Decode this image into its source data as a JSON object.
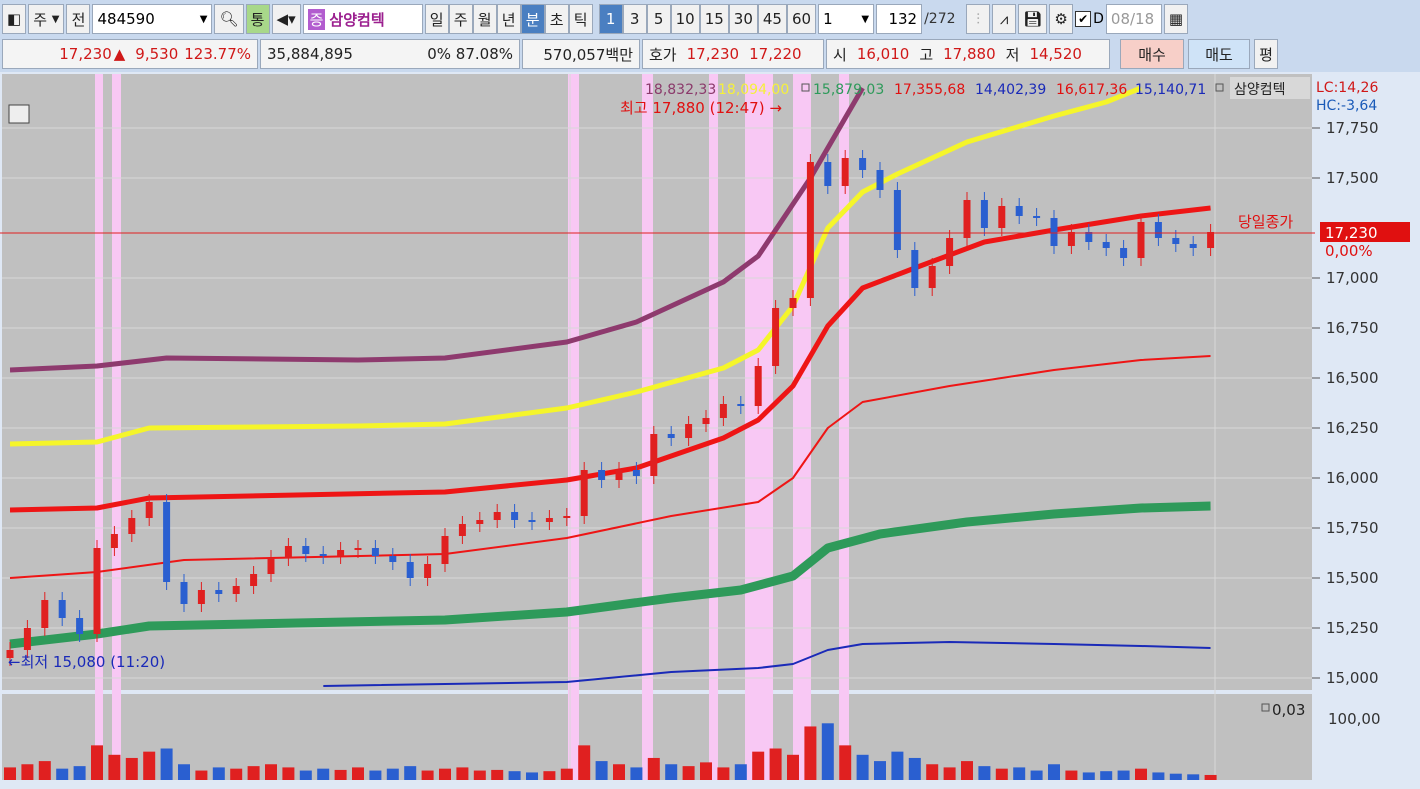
{
  "toolbar": {
    "market": "주",
    "prev": "전",
    "code": "484590",
    "type_btn": "통",
    "name_badge": "증",
    "stock_name": "삼양컴텍",
    "periods": [
      "일",
      "주",
      "월",
      "년",
      "분",
      "초",
      "틱"
    ],
    "selected_period": "분",
    "minutes": [
      "1",
      "3",
      "5",
      "10",
      "15",
      "30",
      "45",
      "60"
    ],
    "selected_minute": "1",
    "multiplier": "1",
    "count": "132",
    "total": "/272",
    "d_checkbox_label": "D",
    "d_checked": true,
    "date": "08/18"
  },
  "quote": {
    "price": "17,230",
    "arrow": "▲",
    "change": "9,530",
    "change_pct": "123.77%",
    "volume": "35,884,895",
    "pct1": "0%",
    "pct2": "87.08%",
    "amount": "570,057백만",
    "bid_label": "호가",
    "ask": "17,230",
    "bid": "17,220",
    "open_label": "시",
    "open": "16,010",
    "high_label": "고",
    "high": "17,880",
    "low_label": "저",
    "low": "14,520",
    "buy_label": "매수",
    "sell_label": "매도",
    "avg_label": "평"
  },
  "legend": {
    "values": [
      {
        "text": "18,832,33",
        "color": "#8b3a6b"
      },
      {
        "text": "18,094,00",
        "color": "#f5f03a"
      },
      {
        "text": "15,879,03",
        "color": "#2e9a5a"
      },
      {
        "text": "17,355,68",
        "color": "#e01010"
      },
      {
        "text": "14,402,39",
        "color": "#1a2ab8"
      },
      {
        "text": "16,617,36",
        "color": "#e01010"
      },
      {
        "text": "15,140,71",
        "color": "#1a2ab8"
      }
    ],
    "name": "삼양컴텍",
    "lc": "LC:14,26",
    "hc": "HC:-3,64"
  },
  "annotations": {
    "high": "최고 17,880 (12:47) →",
    "low": "←최저 15,080 (11:20)",
    "close_label": "당일종가",
    "price_box": "17,230",
    "price_pct": "0,00%",
    "volume_value": "0,03",
    "volume_axis": "100,00"
  },
  "chart_data": {
    "type": "candlestick",
    "y_ticks": [
      "17,750",
      "17,500",
      "17,000",
      "16,750",
      "16,500",
      "16,250",
      "16,000",
      "15,750",
      "15,500",
      "15,250",
      "15,000"
    ],
    "ylim": [
      14980,
      17900
    ],
    "colors": {
      "up": "#e02020",
      "down": "#2a5fd0"
    },
    "closes": [
      15140,
      15250,
      15390,
      15300,
      15220,
      15650,
      15720,
      15800,
      15880,
      15480,
      15370,
      15440,
      15420,
      15460,
      15520,
      15600,
      15660,
      15620,
      15610,
      15640,
      15650,
      15610,
      15580,
      15500,
      15570,
      15710,
      15770,
      15790,
      15830,
      15790,
      15780,
      15800,
      15810,
      16040,
      15990,
      16040,
      16010,
      16220,
      16200,
      16270,
      16300,
      16370,
      16360,
      16560,
      16850,
      16900,
      17580,
      17460,
      17600,
      17540,
      17440,
      17140,
      16950,
      17060,
      17200,
      17390,
      17250,
      17360,
      17310,
      17300,
      17160,
      17230,
      17180,
      17150,
      17100,
      17280,
      17200,
      17170,
      17150,
      17230
    ],
    "volumes": [
      20,
      25,
      30,
      18,
      22,
      55,
      40,
      35,
      45,
      50,
      25,
      15,
      20,
      18,
      22,
      25,
      20,
      15,
      18,
      16,
      20,
      15,
      18,
      22,
      15,
      18,
      20,
      15,
      16,
      14,
      12,
      14,
      18,
      55,
      30,
      25,
      20,
      35,
      25,
      22,
      28,
      20,
      25,
      45,
      50,
      40,
      85,
      90,
      55,
      40,
      30,
      45,
      35,
      25,
      20,
      30,
      22,
      18,
      20,
      15,
      25,
      15,
      12,
      14,
      15,
      18,
      12,
      10,
      9,
      8
    ],
    "lines": [
      {
        "color": "#8e3a6e",
        "width": 5,
        "points": [
          [
            0,
            16540
          ],
          [
            5,
            16560
          ],
          [
            9,
            16600
          ],
          [
            20,
            16590
          ],
          [
            25,
            16600
          ],
          [
            32,
            16680
          ],
          [
            36,
            16780
          ],
          [
            41,
            16980
          ],
          [
            43,
            17110
          ],
          [
            46,
            17500
          ],
          [
            49,
            17950
          ]
        ]
      },
      {
        "color": "#f5f52a",
        "width": 5,
        "points": [
          [
            0,
            16170
          ],
          [
            5,
            16180
          ],
          [
            8,
            16250
          ],
          [
            20,
            16260
          ],
          [
            25,
            16270
          ],
          [
            32,
            16350
          ],
          [
            36,
            16430
          ],
          [
            41,
            16550
          ],
          [
            43,
            16640
          ],
          [
            45,
            16860
          ],
          [
            47,
            17250
          ],
          [
            49,
            17430
          ],
          [
            51,
            17520
          ],
          [
            55,
            17680
          ],
          [
            60,
            17810
          ],
          [
            63,
            17880
          ],
          [
            65,
            17950
          ]
        ]
      },
      {
        "color": "#ee1515",
        "width": 5,
        "points": [
          [
            0,
            15840
          ],
          [
            5,
            15850
          ],
          [
            8,
            15900
          ],
          [
            25,
            15930
          ],
          [
            32,
            15990
          ],
          [
            36,
            16050
          ],
          [
            41,
            16200
          ],
          [
            43,
            16290
          ],
          [
            45,
            16460
          ],
          [
            47,
            16760
          ],
          [
            49,
            16950
          ],
          [
            52,
            17050
          ],
          [
            56,
            17180
          ],
          [
            60,
            17240
          ],
          [
            65,
            17310
          ],
          [
            69,
            17350
          ]
        ]
      },
      {
        "color": "#ee1515",
        "width": 2,
        "points": [
          [
            0,
            15500
          ],
          [
            5,
            15530
          ],
          [
            10,
            15590
          ],
          [
            25,
            15620
          ],
          [
            32,
            15700
          ],
          [
            38,
            15810
          ],
          [
            43,
            15880
          ],
          [
            45,
            16000
          ],
          [
            47,
            16250
          ],
          [
            49,
            16380
          ],
          [
            54,
            16460
          ],
          [
            60,
            16540
          ],
          [
            65,
            16590
          ],
          [
            69,
            16610
          ]
        ]
      },
      {
        "color": "#2e9a5a",
        "width": 9,
        "points": [
          [
            0,
            15170
          ],
          [
            5,
            15220
          ],
          [
            8,
            15260
          ],
          [
            25,
            15290
          ],
          [
            32,
            15330
          ],
          [
            38,
            15400
          ],
          [
            42,
            15440
          ],
          [
            45,
            15510
          ],
          [
            47,
            15650
          ],
          [
            50,
            15720
          ],
          [
            55,
            15780
          ],
          [
            60,
            15820
          ],
          [
            65,
            15850
          ],
          [
            69,
            15860
          ]
        ]
      },
      {
        "color": "#1a2ab8",
        "width": 2,
        "points": [
          [
            18,
            14960
          ],
          [
            32,
            14980
          ],
          [
            38,
            15030
          ],
          [
            43,
            15050
          ],
          [
            45,
            15070
          ],
          [
            47,
            15140
          ],
          [
            49,
            15170
          ],
          [
            54,
            15180
          ],
          [
            60,
            15170
          ],
          [
            65,
            15160
          ],
          [
            69,
            15150
          ]
        ]
      }
    ],
    "close_line": 17230
  }
}
